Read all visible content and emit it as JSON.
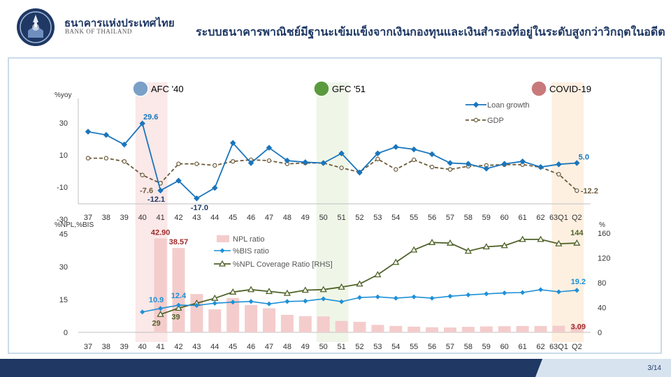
{
  "header": {
    "org_th": "ธนาคารแห่งประเทศไทย",
    "org_en": "BANK OF THAILAND",
    "title": "ระบบธนาคารพาณิชย์มีฐานะเข้มแข็งจากเงินกองทุนและเงินสำรองที่อยู่ในระดับสูงกว่าวิกฤตในอดีต"
  },
  "crisis_labels": [
    "AFC '40",
    "GFC '51",
    "COVID-19"
  ],
  "footer": {
    "page": "3/14"
  },
  "colors": {
    "navy": "#1f3864",
    "loan": "#1a75bc",
    "gdp": "#6b5b3a",
    "npl_bar": "#f4cccc",
    "bis": "#1e90d6",
    "coverage": "#4f6228",
    "shade_pink": "#f9e0e0",
    "shade_green": "#eaf3e0",
    "shade_orange": "#fdebd7"
  },
  "chart_data": [
    {
      "type": "line",
      "ylabel": "%yoy",
      "ylim": [
        -30,
        30
      ],
      "yticks": [
        30,
        10,
        -10,
        -30
      ],
      "categories": [
        "37",
        "38",
        "39",
        "40",
        "41",
        "42",
        "43",
        "44",
        "45",
        "46",
        "47",
        "48",
        "49",
        "50",
        "51",
        "52",
        "53",
        "54",
        "55",
        "56",
        "57",
        "58",
        "59",
        "60",
        "61",
        "62",
        "63Q1",
        "Q2"
      ],
      "series": [
        {
          "name": "Loan growth",
          "values": [
            24.5,
            22.5,
            16.5,
            29.6,
            -12.1,
            -6,
            -17.0,
            -10.5,
            17.5,
            5,
            14.5,
            6.5,
            5.5,
            5,
            11,
            -1,
            11,
            15,
            13.5,
            10.5,
            5,
            4.5,
            1.5,
            4.5,
            6,
            2.5,
            4.2,
            5.0
          ]
        },
        {
          "name": "GDP",
          "values": [
            8,
            8,
            6,
            -2.5,
            -7.6,
            4.5,
            4.5,
            3.5,
            6,
            7,
            6.5,
            4.5,
            5,
            5,
            2,
            -0.7,
            7.5,
            1,
            7,
            2.5,
            1,
            3,
            3.5,
            4,
            4,
            2.4,
            -2,
            -12.2
          ]
        }
      ],
      "annotations": [
        {
          "category": "40",
          "series": "Loan growth",
          "text": "29.6"
        },
        {
          "category": "41",
          "series": "Loan growth",
          "text": "-12.1"
        },
        {
          "category": "43",
          "series": "Loan growth",
          "text": "-17.0"
        },
        {
          "category": "41",
          "series": "GDP",
          "text": "-7.6"
        },
        {
          "category": "Q2",
          "series": "Loan growth",
          "text": "5.0"
        },
        {
          "category": "Q2",
          "series": "GDP",
          "text": "-12.2"
        }
      ],
      "legend_position": "top-right"
    },
    {
      "type": "bar",
      "ylabel": "%NPL,%BIS",
      "y2label": "%",
      "ylim": [
        0,
        45
      ],
      "yticks": [
        45,
        30,
        15,
        0
      ],
      "y2lim": [
        0,
        160
      ],
      "y2ticks": [
        160,
        120,
        80,
        40,
        0
      ],
      "categories": [
        "37",
        "38",
        "39",
        "40",
        "41",
        "42",
        "43",
        "44",
        "45",
        "46",
        "47",
        "48",
        "49",
        "50",
        "51",
        "52",
        "53",
        "54",
        "55",
        "56",
        "57",
        "58",
        "59",
        "60",
        "61",
        "62",
        "63Q1",
        "Q2"
      ],
      "series": [
        {
          "name": "NPL ratio",
          "axis": "left",
          "values": [
            null,
            null,
            null,
            null,
            42.9,
            38.57,
            17.5,
            10.5,
            15.7,
            12.5,
            11,
            8,
            7.4,
            7.3,
            5.2,
            4.8,
            3.4,
            2.9,
            2.6,
            2.3,
            2.2,
            2.5,
            2.7,
            2.8,
            2.9,
            2.9,
            3.0,
            3.09
          ]
        },
        {
          "name": "%BIS ratio",
          "axis": "left",
          "values": [
            null,
            null,
            null,
            9.3,
            10.9,
            12.4,
            12.3,
            13.3,
            13.8,
            14.1,
            13.0,
            14.1,
            14.3,
            15.3,
            14.0,
            15.9,
            16.2,
            15.6,
            16.2,
            15.6,
            16.5,
            17.1,
            17.6,
            18.0,
            18.2,
            19.5,
            18.5,
            19.2
          ]
        },
        {
          "name": "%NPL Coverage Ratio [RHS]",
          "axis": "right",
          "values": [
            null,
            null,
            null,
            null,
            29,
            39,
            47,
            55,
            65,
            69,
            66,
            63,
            68,
            69,
            73,
            78,
            93,
            113,
            133,
            145,
            144,
            131,
            138,
            140,
            150,
            150,
            143,
            144
          ]
        }
      ],
      "annotations": [
        {
          "category": "41",
          "series": "NPL ratio",
          "text": "42.90"
        },
        {
          "category": "42",
          "series": "NPL ratio",
          "text": "38.57"
        },
        {
          "category": "41",
          "series": "%BIS ratio",
          "text": "10.9"
        },
        {
          "category": "42",
          "series": "%BIS ratio",
          "text": "12.4"
        },
        {
          "category": "41",
          "series": "%NPL Coverage Ratio [RHS]",
          "text": "29"
        },
        {
          "category": "42",
          "series": "%NPL Coverage Ratio [RHS]",
          "text": "39"
        },
        {
          "category": "Q2",
          "series": "%NPL Coverage Ratio [RHS]",
          "text": "144"
        },
        {
          "category": "Q2",
          "series": "%BIS ratio",
          "text": "19.2"
        },
        {
          "category": "Q2",
          "series": "NPL ratio",
          "text": "3.09"
        }
      ],
      "legend_position": "top-center"
    }
  ]
}
